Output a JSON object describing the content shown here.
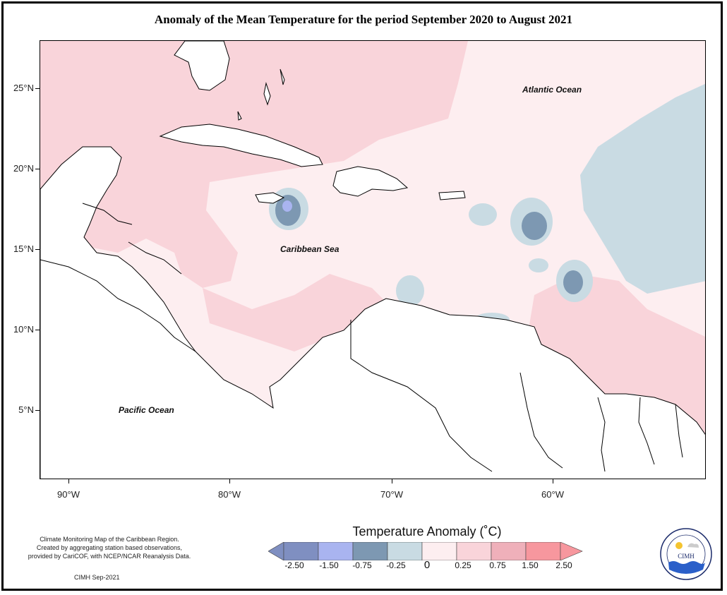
{
  "title": "Anomaly of the Mean Temperature for the period September 2020 to August 2021",
  "map": {
    "lat_labels": [
      "25°N",
      "20°N",
      "15°N",
      "10°N",
      "5°N"
    ],
    "lon_labels": [
      "90°W",
      "80°W",
      "70°W",
      "60°W"
    ],
    "ocean_labels": {
      "atlantic": "Atlantic Ocean",
      "caribbean": "Caribbean Sea",
      "pacific": "Pacific Ocean"
    }
  },
  "legend": {
    "title": "Temperature Anomaly (˚C)",
    "tick_labels": [
      "-2.50",
      "-1.50",
      "-0.75",
      "-0.25",
      "0",
      "0.25",
      "0.75",
      "1.50",
      "2.50"
    ],
    "colors": [
      "#7f8fc1",
      "#a9b4f0",
      "#7d98b2",
      "#c9dbe3",
      "#fdeef0",
      "#f9d4da",
      "#efb0ba",
      "#f7979e"
    ]
  },
  "credit": {
    "line1": "Climate Monitoring Map of the Caribbean Region.",
    "line2": "Created by aggregating station based observations,",
    "line3": "provided by CariCOF, with NCEP/NCAR Reanalysis Data.",
    "date": "CIMH Sep-2021"
  },
  "logo": {
    "text": "CIMH",
    "ring_text": "Caribbean Institute for Meteorology and Hydrology"
  }
}
